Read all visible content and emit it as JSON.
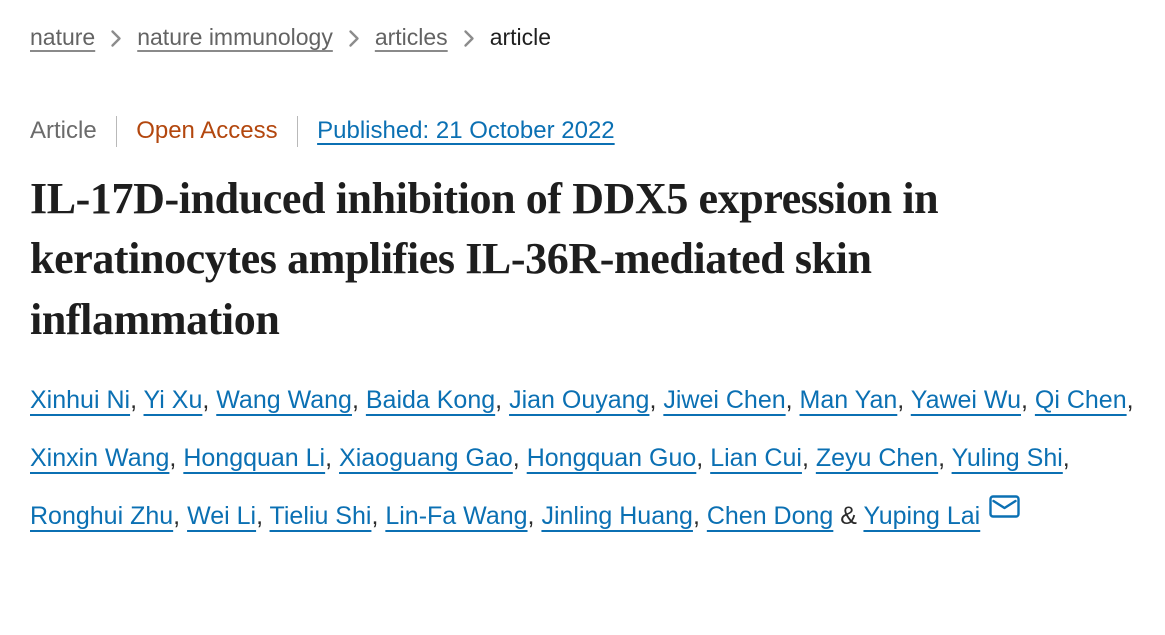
{
  "breadcrumb": {
    "items": [
      {
        "label": "nature"
      },
      {
        "label": "nature immunology"
      },
      {
        "label": "articles"
      },
      {
        "label": "article"
      }
    ]
  },
  "meta": {
    "type_label": "Article",
    "access_label": "Open Access",
    "published_label": "Published: 21 October 2022"
  },
  "title": "IL-17D-induced inhibition of DDX5 expression in keratinocytes amplifies IL-36R-mediated skin inflammation",
  "authors": {
    "names": [
      "Xinhui Ni",
      "Yi Xu",
      "Wang Wang",
      "Baida Kong",
      "Jian Ouyang",
      "Jiwei Chen",
      "Man Yan",
      "Yawei Wu",
      "Qi Chen",
      "Xinxin Wang",
      "Hongquan Li",
      "Xiaoguang Gao",
      "Hongquan Guo",
      "Lian Cui",
      "Zeyu Chen",
      "Yuling Shi",
      "Ronghui Zhu",
      "Wei Li",
      "Tieliu Shi",
      "Lin-Fa Wang",
      "Jinling Huang",
      "Chen Dong",
      "Yuping Lai"
    ],
    "comma_separator": ", ",
    "last_separator": " & ",
    "corresponding_icon": "envelope-icon"
  },
  "colors": {
    "link_blue": "#0b70b3",
    "open_access_orange": "#b3470e",
    "breadcrumb_gray": "#636363",
    "title_black": "#1e1e1e"
  }
}
